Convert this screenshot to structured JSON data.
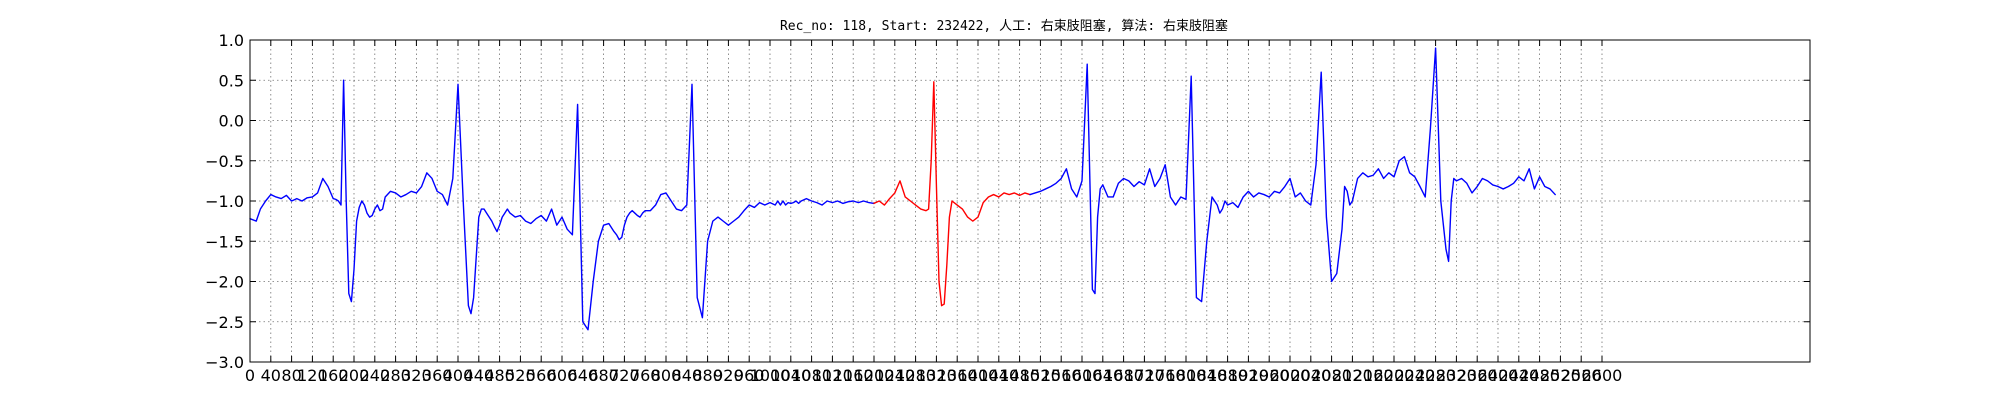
{
  "chart_data": {
    "type": "line",
    "title": "Rec_no: 118, Start: 232422, 人工: 右束肢阻塞, 算法: 右束肢阻塞",
    "xlabel": "",
    "ylabel": "",
    "xlim": [
      0,
      3000
    ],
    "ylim": [
      -3.0,
      1.0
    ],
    "grid": true,
    "legend": "none",
    "y_ticks": [
      1.0,
      0.5,
      0.0,
      -0.5,
      -1.0,
      -1.5,
      -2.0,
      -2.5,
      -3.0
    ],
    "y_tick_labels": [
      "1.0",
      "0.5",
      "0.0",
      "−0.5",
      "−1.0",
      "−1.5",
      "−2.0",
      "−2.5",
      "−3.0"
    ],
    "x_ticks": [
      0,
      40,
      80,
      120,
      160,
      200,
      240,
      280,
      320,
      360,
      400,
      440,
      480,
      520,
      560,
      600,
      640,
      680,
      720,
      760,
      800,
      840,
      880,
      920,
      960,
      1000,
      1040,
      1080,
      1120,
      1160,
      1200,
      1240,
      1280,
      1320,
      1360,
      1400,
      1440,
      1480,
      1520,
      1560,
      1600,
      1640,
      1680,
      1720,
      1760,
      1800,
      1840,
      1880,
      1920,
      1960,
      2000,
      2040,
      2080,
      2120,
      2160,
      2200,
      2240,
      2280,
      2320,
      2360,
      2400,
      2440,
      2480,
      2520,
      2560,
      2600
    ],
    "x_tick_labels": [
      "0",
      "40",
      "80",
      "120",
      "160",
      "200",
      "240",
      "280",
      "320",
      "360",
      "400",
      "440",
      "480",
      "520",
      "560",
      "600",
      "640",
      "680",
      "720",
      "760",
      "800",
      "840",
      "880",
      "920",
      "960",
      "1000",
      "1040",
      "1080",
      "1120",
      "1160",
      "1200",
      "1240",
      "1280",
      "1320",
      "1360",
      "1400",
      "1440",
      "1480",
      "1520",
      "1560",
      "1600",
      "1640",
      "1680",
      "1720",
      "1760",
      "1800",
      "1840",
      "1880",
      "1920",
      "1960",
      "2000",
      "2040",
      "2080",
      "2120",
      "2160",
      "2200",
      "2240",
      "2280",
      "2320",
      "2360",
      "2400",
      "2440",
      "2480",
      "2520",
      "2560",
      "2600"
    ],
    "colors": {
      "normal": "#0000ff",
      "highlight": "#ff0000"
    },
    "series": [
      {
        "color": "#0000ff",
        "x": [
          0,
          12,
          20,
          30,
          40,
          50,
          60,
          70,
          80,
          90,
          100,
          110,
          120,
          130,
          140,
          150,
          160,
          165,
          170,
          175,
          180,
          185,
          190,
          195,
          200,
          205,
          210,
          215,
          220,
          225,
          230,
          235,
          240,
          245,
          250,
          255,
          260,
          270,
          280,
          290,
          300,
          310,
          320,
          330,
          340,
          350,
          360,
          370,
          380,
          390,
          400,
          410,
          420,
          425,
          430,
          435,
          440,
          445,
          450,
          455,
          460,
          465,
          470,
          475,
          480,
          485,
          490,
          495,
          500,
          510,
          520,
          530,
          540,
          550,
          560,
          570,
          580,
          590,
          600,
          610,
          620,
          630,
          640,
          650,
          660,
          670,
          680,
          690,
          700,
          705,
          710,
          715,
          720,
          725,
          730,
          735,
          740,
          745,
          750,
          755,
          760,
          770,
          780,
          790,
          800,
          810,
          820,
          830,
          840,
          850,
          860,
          870,
          880,
          890,
          900,
          910,
          920,
          930,
          940,
          950,
          960,
          970,
          980,
          990,
          1000,
          1010,
          1015,
          1020,
          1025,
          1030,
          1035,
          1040,
          1045,
          1050,
          1055,
          1060,
          1070,
          1080,
          1090,
          1100,
          1110,
          1120,
          1130,
          1140,
          1150,
          1160,
          1170,
          1180,
          1190,
          1200
        ],
        "y": [
          -1.22,
          -1.25,
          -1.1,
          -1.0,
          -0.92,
          -0.95,
          -0.97,
          -0.93,
          -1.0,
          -0.97,
          -1.0,
          -0.96,
          -0.95,
          -0.9,
          -0.72,
          -0.82,
          -0.97,
          -0.98,
          -1.0,
          -1.05,
          0.5,
          -1.0,
          -2.15,
          -2.25,
          -1.85,
          -1.25,
          -1.08,
          -1.0,
          -1.05,
          -1.15,
          -1.2,
          -1.18,
          -1.1,
          -1.05,
          -1.12,
          -1.1,
          -0.95,
          -0.88,
          -0.9,
          -0.95,
          -0.92,
          -0.88,
          -0.9,
          -0.82,
          -0.65,
          -0.72,
          -0.88,
          -0.92,
          -1.05,
          -0.72,
          0.45,
          -1.0,
          -2.3,
          -2.4,
          -2.2,
          -1.7,
          -1.2,
          -1.1,
          -1.1,
          -1.15,
          -1.2,
          -1.25,
          -1.32,
          -1.38,
          -1.3,
          -1.2,
          -1.15,
          -1.1,
          -1.15,
          -1.2,
          -1.18,
          -1.25,
          -1.28,
          -1.22,
          -1.18,
          -1.25,
          -1.1,
          -1.3,
          -1.2,
          -1.35,
          -1.42,
          0.2,
          -2.5,
          -2.6,
          -2.0,
          -1.5,
          -1.3,
          -1.28,
          -1.38,
          -1.42,
          -1.48,
          -1.45,
          -1.3,
          -1.2,
          -1.15,
          -1.12,
          -1.15,
          -1.18,
          -1.2,
          -1.15,
          -1.12,
          -1.12,
          -1.05,
          -0.92,
          -0.9,
          -1.0,
          -1.1,
          -1.12,
          -1.05,
          0.45,
          -2.2,
          -2.45,
          -1.5,
          -1.25,
          -1.2,
          -1.25,
          -1.3,
          -1.25,
          -1.2,
          -1.12,
          -1.05,
          -1.08,
          -1.02,
          -1.05,
          -1.02,
          -1.05,
          -1.0,
          -1.05,
          -1.0,
          -1.05,
          -1.02,
          -1.03,
          -1.02,
          -1.0,
          -1.03,
          -1.0,
          -0.97,
          -1.0,
          -1.02,
          -1.05,
          -1.0,
          -1.02,
          -1.0,
          -1.03,
          -1.01,
          -1.0,
          -1.02,
          -1.0,
          -1.02,
          -1.03
        ]
      },
      {
        "color": "#ff0000",
        "x": [
          1200,
          1210,
          1220,
          1230,
          1240,
          1250,
          1260,
          1270,
          1280,
          1290,
          1300,
          1305,
          1310,
          1315,
          1320,
          1325,
          1330,
          1335,
          1340,
          1345,
          1350,
          1360,
          1370,
          1380,
          1390,
          1400,
          1410,
          1420,
          1430,
          1440,
          1450,
          1460,
          1470,
          1480,
          1490,
          1500
        ],
        "y": [
          -1.03,
          -1.0,
          -1.05,
          -0.97,
          -0.9,
          -0.75,
          -0.95,
          -1.0,
          -1.05,
          -1.1,
          -1.12,
          -1.1,
          -0.5,
          0.48,
          -0.8,
          -2.0,
          -2.3,
          -2.28,
          -1.8,
          -1.2,
          -1.0,
          -1.05,
          -1.1,
          -1.2,
          -1.25,
          -1.2,
          -1.02,
          -0.95,
          -0.92,
          -0.95,
          -0.9,
          -0.92,
          -0.9,
          -0.93,
          -0.9,
          -0.92
        ]
      },
      {
        "color": "#0000ff",
        "x": [
          1500,
          1510,
          1520,
          1530,
          1540,
          1550,
          1560,
          1570,
          1580,
          1590,
          1600,
          1610,
          1620,
          1625,
          1630,
          1635,
          1640,
          1650,
          1660,
          1670,
          1680,
          1690,
          1700,
          1710,
          1720,
          1730,
          1740,
          1750,
          1760,
          1770,
          1780,
          1790,
          1800,
          1810,
          1820,
          1830,
          1840,
          1850,
          1860,
          1865,
          1870,
          1875,
          1880,
          1890,
          1900,
          1910,
          1920,
          1930,
          1940,
          1950,
          1960,
          1970,
          1980,
          1990,
          2000,
          2010,
          2020,
          2030,
          2040,
          2050,
          2060,
          2070,
          2080,
          2090,
          2100,
          2105,
          2110,
          2115,
          2120,
          2130,
          2140,
          2150,
          2160,
          2170,
          2180,
          2190,
          2200,
          2210,
          2220,
          2230,
          2240,
          2250,
          2260,
          2270,
          2280,
          2290,
          2300,
          2305,
          2310,
          2315,
          2320,
          2330,
          2340,
          2350,
          2360,
          2370,
          2380,
          2390,
          2400,
          2410,
          2420,
          2430,
          2440,
          2450,
          2460,
          2470,
          2480,
          2490,
          2500,
          2510
        ],
        "y": [
          -0.92,
          -0.9,
          -0.88,
          -0.85,
          -0.82,
          -0.78,
          -0.72,
          -0.6,
          -0.85,
          -0.95,
          -0.75,
          0.7,
          -2.1,
          -2.15,
          -1.2,
          -0.85,
          -0.8,
          -0.95,
          -0.95,
          -0.78,
          -0.72,
          -0.75,
          -0.82,
          -0.76,
          -0.8,
          -0.6,
          -0.82,
          -0.72,
          -0.55,
          -0.95,
          -1.05,
          -0.95,
          -0.98,
          0.55,
          -2.2,
          -2.25,
          -1.5,
          -0.95,
          -1.05,
          -1.15,
          -1.1,
          -1.0,
          -1.05,
          -1.02,
          -1.08,
          -0.95,
          -0.88,
          -0.95,
          -0.9,
          -0.92,
          -0.95,
          -0.88,
          -0.9,
          -0.82,
          -0.72,
          -0.95,
          -0.9,
          -1.0,
          -1.05,
          -0.55,
          0.6,
          -1.2,
          -2.0,
          -1.9,
          -1.35,
          -0.82,
          -0.88,
          -1.05,
          -1.0,
          -0.72,
          -0.65,
          -0.7,
          -0.68,
          -0.6,
          -0.72,
          -0.65,
          -0.7,
          -0.5,
          -0.45,
          -0.65,
          -0.7,
          -0.82,
          -0.95,
          -0.1,
          0.9,
          -1.0,
          -1.6,
          -1.75,
          -1.0,
          -0.72,
          -0.75,
          -0.72,
          -0.78,
          -0.9,
          -0.82,
          -0.72,
          -0.75,
          -0.8,
          -0.82,
          -0.85,
          -0.82,
          -0.78,
          -0.7,
          -0.75,
          -0.6,
          -0.85,
          -0.7,
          -0.82,
          -0.85,
          -0.92
        ]
      }
    ]
  }
}
